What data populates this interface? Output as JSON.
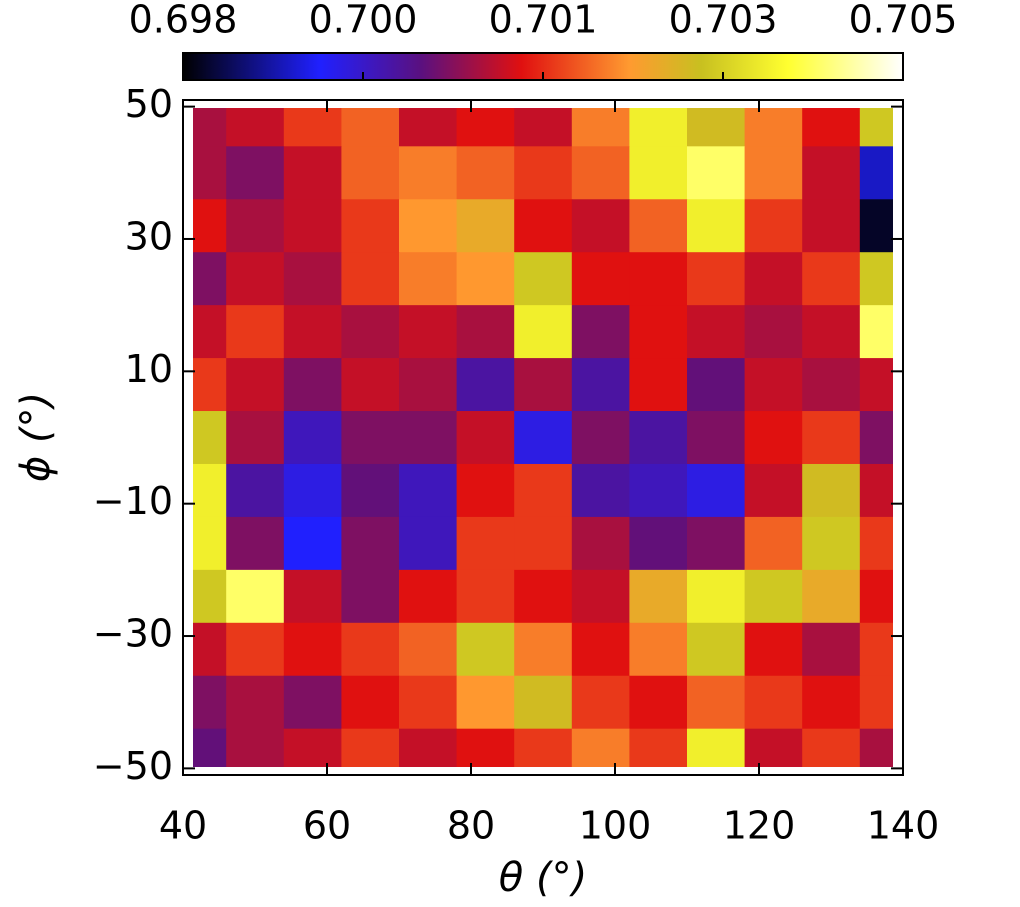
{
  "chart_data": {
    "type": "heatmap",
    "x_label": "θ (°)",
    "y_label": "ϕ (°)",
    "xlim": [
      40,
      140
    ],
    "xticks": [
      40,
      60,
      80,
      100,
      120,
      140
    ],
    "ylim": [
      -51,
      51
    ],
    "yticks": [
      {
        "value": -50,
        "label": "−50"
      },
      {
        "value": -30,
        "label": "−30"
      },
      {
        "value": -10,
        "label": "−10"
      },
      10,
      30,
      50
    ],
    "clim": [
      0.698,
      0.7048
    ],
    "cticks": [
      {
        "value": 0.698,
        "label": "0.698"
      },
      {
        "value": 0.6997,
        "label": "0.700"
      },
      {
        "value": 0.7014,
        "label": "0.701"
      },
      {
        "value": 0.7031,
        "label": "0.703"
      },
      {
        "value": 0.7048,
        "label": "0.705"
      }
    ],
    "colormap": [
      [
        0,
        "#000000"
      ],
      [
        0.19,
        "#2020ff"
      ],
      [
        0.33,
        "#5a1080"
      ],
      [
        0.47,
        "#e01010"
      ],
      [
        0.62,
        "#ff9a30"
      ],
      [
        0.72,
        "#c8c020"
      ],
      [
        0.84,
        "#ffff30"
      ],
      [
        1,
        "#ffffff"
      ]
    ],
    "x": [
      42,
      50,
      58,
      66,
      74,
      82,
      90,
      98,
      106,
      114,
      122,
      130,
      138
    ],
    "y": [
      48,
      40,
      32,
      24,
      16,
      8,
      0,
      -8,
      -16,
      -24,
      -32,
      -40,
      -48
    ],
    "z": [
      [
        0.7008,
        0.701,
        0.7015,
        0.7018,
        0.701,
        0.7012,
        0.701,
        0.702,
        0.7035,
        0.7028,
        0.702,
        0.7012,
        0.703
      ],
      [
        0.7008,
        0.7005,
        0.701,
        0.7018,
        0.702,
        0.7018,
        0.7015,
        0.7018,
        0.7035,
        0.704,
        0.702,
        0.701,
        0.699
      ],
      [
        0.7012,
        0.7008,
        0.701,
        0.7015,
        0.7022,
        0.7025,
        0.7012,
        0.701,
        0.7018,
        0.7035,
        0.7015,
        0.701,
        0.6982
      ],
      [
        0.7005,
        0.701,
        0.7008,
        0.7015,
        0.702,
        0.7022,
        0.703,
        0.7012,
        0.7012,
        0.7015,
        0.701,
        0.7015,
        0.703
      ],
      [
        0.701,
        0.7015,
        0.701,
        0.7008,
        0.701,
        0.7008,
        0.7035,
        0.7005,
        0.7012,
        0.701,
        0.7008,
        0.701,
        0.704
      ],
      [
        0.7015,
        0.701,
        0.7005,
        0.701,
        0.7008,
        0.7,
        0.7008,
        0.7,
        0.7012,
        0.7003,
        0.701,
        0.7008,
        0.701
      ],
      [
        0.703,
        0.7008,
        0.6998,
        0.7005,
        0.7005,
        0.701,
        0.6995,
        0.7005,
        0.7,
        0.7005,
        0.7012,
        0.7015,
        0.7005
      ],
      [
        0.7035,
        0.7,
        0.6995,
        0.7003,
        0.6998,
        0.7012,
        0.7015,
        0.7,
        0.6998,
        0.6995,
        0.701,
        0.7028,
        0.701
      ],
      [
        0.7035,
        0.7005,
        0.6993,
        0.7005,
        0.6998,
        0.7015,
        0.7015,
        0.7008,
        0.7003,
        0.7005,
        0.7018,
        0.703,
        0.7015
      ],
      [
        0.703,
        0.704,
        0.701,
        0.7005,
        0.7012,
        0.7015,
        0.7012,
        0.701,
        0.7025,
        0.7035,
        0.703,
        0.7025,
        0.7012
      ],
      [
        0.701,
        0.7015,
        0.7012,
        0.7015,
        0.7018,
        0.703,
        0.702,
        0.7012,
        0.702,
        0.703,
        0.7012,
        0.7008,
        0.7015
      ],
      [
        0.7005,
        0.7008,
        0.7005,
        0.7012,
        0.7015,
        0.7022,
        0.7028,
        0.7015,
        0.7012,
        0.7018,
        0.7015,
        0.7012,
        0.7015
      ],
      [
        0.7003,
        0.7008,
        0.701,
        0.7015,
        0.701,
        0.7012,
        0.7015,
        0.702,
        0.7015,
        0.7035,
        0.701,
        0.7015,
        0.7008
      ]
    ]
  }
}
